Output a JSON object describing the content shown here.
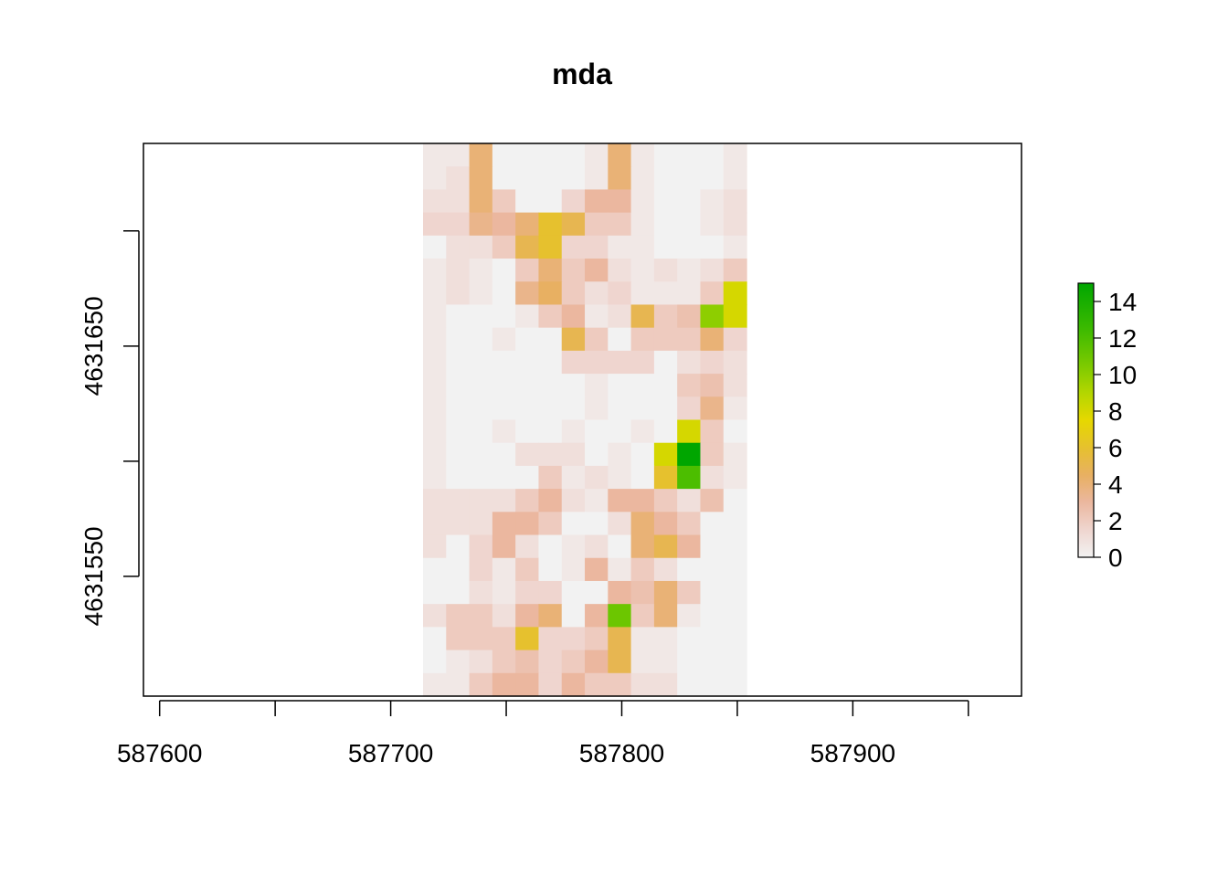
{
  "chart_data": {
    "type": "heatmap",
    "title": "mda",
    "xlabel": "",
    "ylabel": "",
    "xlim": [
      587593,
      587973
    ],
    "ylim": [
      4631498,
      4631738
    ],
    "x_ticks": [
      587600,
      587650,
      587700,
      587750,
      587800,
      587850,
      587900,
      587950
    ],
    "x_tick_labels": [
      "587600",
      "",
      "587700",
      "",
      "587800",
      "",
      "587900",
      ""
    ],
    "y_ticks": [
      4631550,
      4631600,
      4631650,
      4631700
    ],
    "y_tick_labels": [
      "4631550",
      "",
      "4631650",
      ""
    ],
    "grid": false,
    "raster": {
      "x_min": 587714,
      "cell_width": 10,
      "y_top": 4631738,
      "cell_height": 10,
      "cols": 14,
      "values": [
        [
          0.5,
          0.5,
          4,
          0,
          0,
          0,
          0,
          0.5,
          4,
          0.5,
          0,
          0,
          0,
          0.5
        ],
        [
          0.5,
          1,
          4,
          0,
          0,
          0,
          0,
          0.5,
          4,
          0.5,
          0,
          0,
          0,
          0.5
        ],
        [
          1,
          1,
          4,
          2,
          0,
          0,
          1.5,
          3,
          3,
          0.5,
          0,
          0,
          0.5,
          1
        ],
        [
          1.5,
          1.5,
          3.5,
          3,
          4,
          6,
          5,
          2,
          2,
          0.5,
          0,
          0,
          0.5,
          1
        ],
        [
          0,
          1,
          1,
          2,
          5,
          6,
          1.5,
          1.5,
          0.5,
          0.5,
          0,
          0,
          0,
          0.5
        ],
        [
          0.5,
          1,
          0.5,
          0,
          2,
          4,
          2,
          3,
          1,
          0.5,
          1,
          0.5,
          1,
          2
        ],
        [
          0.5,
          1,
          0.5,
          0,
          3.5,
          4.5,
          2,
          1,
          1.5,
          0.5,
          0.5,
          0.5,
          2,
          8
        ],
        [
          0.5,
          0,
          0,
          0,
          0.5,
          2,
          3,
          0.5,
          1,
          5,
          2,
          2.5,
          10,
          8
        ],
        [
          0.5,
          0,
          0,
          0.5,
          0,
          0,
          5,
          2,
          0,
          2,
          2,
          2,
          4,
          1.5
        ],
        [
          0.5,
          0,
          0,
          0,
          0,
          0,
          1.5,
          1.5,
          1.5,
          1.5,
          0,
          1,
          1.5,
          1
        ],
        [
          0.5,
          0,
          0,
          0,
          0,
          0,
          0,
          0.5,
          0,
          0,
          0,
          2,
          2.5,
          1
        ],
        [
          0.5,
          0,
          0,
          0,
          0,
          0,
          0,
          0.5,
          0,
          0,
          0,
          1.5,
          3.5,
          0.5
        ],
        [
          0.5,
          0,
          0,
          0.5,
          0,
          0,
          0.5,
          0,
          0,
          0.5,
          0,
          8,
          2,
          0
        ],
        [
          0.5,
          0,
          0,
          0,
          1,
          1,
          1,
          0,
          0.5,
          0,
          8,
          15,
          2,
          0.5
        ],
        [
          0.5,
          0,
          0,
          0,
          0,
          2,
          0.5,
          1,
          0.5,
          0,
          6,
          12,
          1,
          0.5
        ],
        [
          1,
          1,
          1,
          1,
          2,
          3,
          1,
          0.5,
          3,
          3,
          2,
          1,
          2.5,
          0
        ],
        [
          1,
          1,
          1,
          3,
          3,
          2,
          0,
          0,
          1,
          4,
          3,
          2,
          0,
          0
        ],
        [
          1,
          0,
          1.5,
          3,
          1,
          0,
          0.5,
          1,
          0,
          4,
          5,
          3,
          0,
          0
        ],
        [
          0,
          0,
          1.5,
          0.5,
          2,
          0,
          0.5,
          3,
          0.5,
          2,
          1,
          0,
          0,
          0
        ],
        [
          0,
          0,
          1,
          0.5,
          1.5,
          1.5,
          0,
          0,
          3,
          2.5,
          4,
          2,
          0,
          0
        ],
        [
          1,
          2,
          2,
          1,
          3,
          4,
          0,
          3,
          11,
          2,
          4,
          0.5,
          0,
          0
        ],
        [
          0,
          2,
          2,
          2,
          6,
          1.5,
          1.5,
          2,
          5,
          0.5,
          0.5,
          0,
          0,
          0
        ],
        [
          0,
          0.5,
          1,
          2,
          2.5,
          1.5,
          2,
          3,
          5,
          0.5,
          0.5,
          0,
          0,
          0
        ],
        [
          0.5,
          0.5,
          2,
          3,
          3,
          1.5,
          3,
          2,
          2,
          1,
          1,
          0,
          0,
          0
        ]
      ]
    },
    "legend": {
      "min": 0,
      "max": 15,
      "ticks": [
        0,
        2,
        4,
        6,
        8,
        10,
        12,
        14
      ],
      "tick_labels": [
        "0",
        "2",
        "4",
        "6",
        "8",
        "10",
        "12",
        "14"
      ],
      "placement": "right"
    },
    "colors": {
      "palette": [
        "#F2F2F2",
        "#EFD5CF",
        "#EBB79F",
        "#E8B062",
        "#E6C12E",
        "#E6D800",
        "#B3D600",
        "#7CCA00",
        "#3CBA00",
        "#00A600"
      ],
      "palette_values": [
        0,
        1.5,
        3,
        4.5,
        6,
        7.5,
        9,
        10.5,
        12.5,
        15
      ],
      "axis": "#000000",
      "background": "#ffffff"
    }
  }
}
